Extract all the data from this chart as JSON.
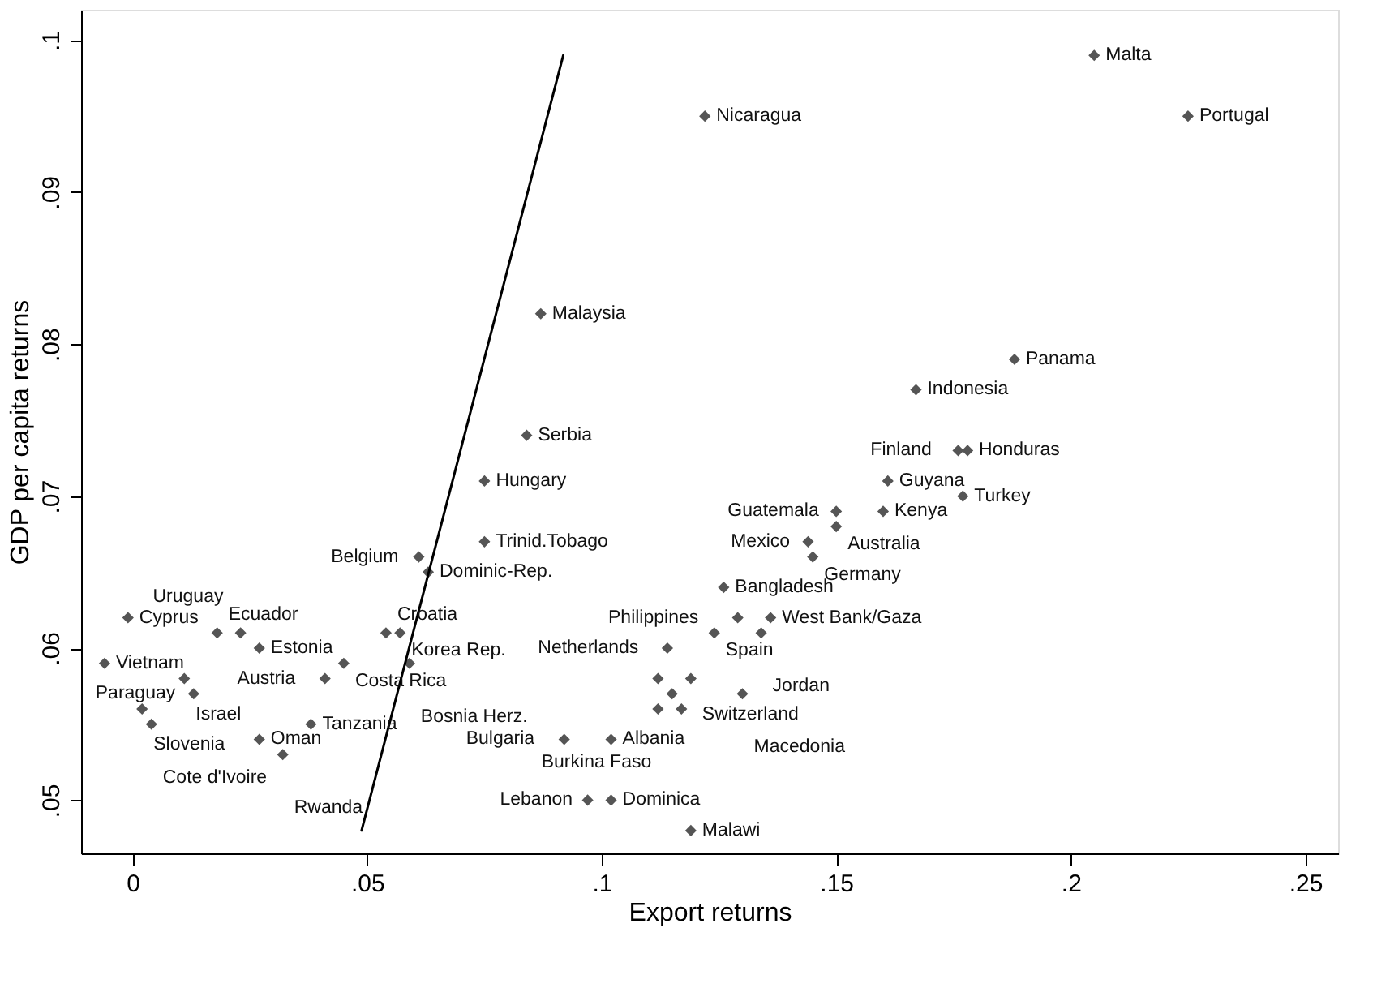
{
  "chart_data": {
    "type": "scatter",
    "xlabel": "Export returns",
    "ylabel": "GDP per capita returns",
    "xlim": [
      -0.011,
      0.257
    ],
    "ylim": [
      0.0465,
      0.102
    ],
    "xticks": [
      0,
      {
        "value": 0.05,
        "label": ".05"
      },
      {
        "value": 0.1,
        "label": ".1"
      },
      {
        "value": 0.15,
        "label": ".15"
      },
      {
        "value": 0.2,
        "label": ".2"
      },
      {
        "value": 0.25,
        "label": ".25"
      }
    ],
    "yticks": [
      {
        "value": 0.05,
        "label": ".05"
      },
      {
        "value": 0.06,
        "label": ".06"
      },
      {
        "value": 0.07,
        "label": ".07"
      },
      {
        "value": 0.08,
        "label": ".08"
      },
      {
        "value": 0.09,
        "label": ".09"
      },
      {
        "value": 0.1,
        "label": ".1"
      }
    ],
    "grid": false,
    "marker": "diamond",
    "series": [
      {
        "color": "#555555",
        "x": [
          -0.001,
          -0.006,
          0.018,
          0.023,
          0.027,
          0.054,
          0.057,
          0.045,
          0.059,
          0.041,
          0.011,
          0.013,
          0.002,
          0.004,
          0.038,
          0.027,
          0.032,
          0.092,
          0.102,
          0.097,
          0.102,
          0.119,
          0.126,
          0.129,
          0.136,
          0.124,
          0.134,
          0.114,
          0.112,
          0.119,
          0.115,
          0.13,
          0.112,
          0.117,
          0.167,
          0.176,
          0.178,
          0.161,
          0.177,
          0.15,
          0.16,
          0.15,
          0.144,
          0.145,
          0.205,
          0.225,
          0.122,
          0.087,
          0.188,
          0.084,
          0.075,
          0.075,
          0.061,
          0.063
        ],
        "values": [
          0.062,
          0.059,
          0.061,
          0.061,
          0.06,
          0.061,
          0.061,
          0.059,
          0.059,
          0.058,
          0.058,
          0.057,
          0.056,
          0.055,
          0.055,
          0.054,
          0.053,
          0.054,
          0.054,
          0.05,
          0.05,
          0.048,
          0.064,
          0.062,
          0.062,
          0.061,
          0.061,
          0.06,
          0.058,
          0.058,
          0.057,
          0.057,
          0.056,
          0.056,
          0.077,
          0.073,
          0.073,
          0.071,
          0.07,
          0.069,
          0.069,
          0.068,
          0.067,
          0.066,
          0.099,
          0.095,
          0.095,
          0.082,
          0.079,
          0.074,
          0.071,
          0.067,
          0.066,
          0.065
        ]
      },
      {
        "type": "line",
        "marker": "none",
        "color": "#000000",
        "x": [
          0.0488,
          0.0918
        ],
        "values": [
          0.048,
          0.099
        ]
      }
    ],
    "annotations": [
      {
        "text": "Cyprus",
        "x": -0.001,
        "y": 0.062
      },
      {
        "text": "Vietnam",
        "x": -0.006,
        "y": 0.059
      },
      {
        "text": "Ecuador",
        "x": 0.018,
        "y": 0.061
      },
      {
        "text": "Uruguay",
        "x": 0.023,
        "y": 0.061
      },
      {
        "text": "Estonia",
        "x": 0.027,
        "y": 0.06
      },
      {
        "text": "Croatia",
        "x": 0.054,
        "y": 0.061
      },
      {
        "text": "Korea Rep.",
        "x": 0.057,
        "y": 0.061
      },
      {
        "text": "Costa Rica",
        "x": 0.045,
        "y": 0.059
      },
      {
        "text": "Bosnia Herz.",
        "x": 0.059,
        "y": 0.059
      },
      {
        "text": "Austria",
        "x": 0.041,
        "y": 0.058
      },
      {
        "text": "Israel",
        "x": 0.011,
        "y": 0.058
      },
      {
        "text": "Paraguay",
        "x": 0.013,
        "y": 0.057
      },
      {
        "text": "Slovenia",
        "x": 0.002,
        "y": 0.056
      },
      {
        "text": "Cote d'Ivoire",
        "x": 0.004,
        "y": 0.055
      },
      {
        "text": "Tanzania",
        "x": 0.038,
        "y": 0.055
      },
      {
        "text": "Oman",
        "x": 0.027,
        "y": 0.054
      },
      {
        "text": "Rwanda",
        "x": 0.032,
        "y": 0.053
      },
      {
        "text": "Bulgaria",
        "x": 0.092,
        "y": 0.054
      },
      {
        "text": "Albania",
        "x": 0.102,
        "y": 0.054
      },
      {
        "text": "Lebanon",
        "x": 0.097,
        "y": 0.05
      },
      {
        "text": "Dominica",
        "x": 0.102,
        "y": 0.05
      },
      {
        "text": "Malawi",
        "x": 0.119,
        "y": 0.048
      },
      {
        "text": "Bangladesh",
        "x": 0.126,
        "y": 0.064
      },
      {
        "text": "Philippines",
        "x": 0.129,
        "y": 0.062
      },
      {
        "text": "West Bank/Gaza",
        "x": 0.136,
        "y": 0.062
      },
      {
        "text": "Spain",
        "x": 0.124,
        "y": 0.061
      },
      {
        "text": "Jordan",
        "x": 0.134,
        "y": 0.061
      },
      {
        "text": "Netherlands",
        "x": 0.114,
        "y": 0.06
      },
      {
        "text": "Switzerland",
        "x": 0.119,
        "y": 0.058
      },
      {
        "text": "Macedonia",
        "x": 0.13,
        "y": 0.057
      },
      {
        "text": "Burkina Faso",
        "x": 0.117,
        "y": 0.056
      },
      {
        "text": "Indonesia",
        "x": 0.167,
        "y": 0.077
      },
      {
        "text": "Finland",
        "x": 0.176,
        "y": 0.073
      },
      {
        "text": "Honduras",
        "x": 0.178,
        "y": 0.073
      },
      {
        "text": "Guyana",
        "x": 0.161,
        "y": 0.071
      },
      {
        "text": "Turkey",
        "x": 0.177,
        "y": 0.07
      },
      {
        "text": "Guatemala",
        "x": 0.15,
        "y": 0.069
      },
      {
        "text": "Kenya",
        "x": 0.16,
        "y": 0.069
      },
      {
        "text": "Australia",
        "x": 0.15,
        "y": 0.068
      },
      {
        "text": "Mexico",
        "x": 0.144,
        "y": 0.067
      },
      {
        "text": "Germany",
        "x": 0.145,
        "y": 0.066
      },
      {
        "text": "Malta",
        "x": 0.205,
        "y": 0.099
      },
      {
        "text": "Portugal",
        "x": 0.225,
        "y": 0.095
      },
      {
        "text": "Nicaragua",
        "x": 0.122,
        "y": 0.095
      },
      {
        "text": "Malaysia",
        "x": 0.087,
        "y": 0.082
      },
      {
        "text": "Panama",
        "x": 0.188,
        "y": 0.079
      },
      {
        "text": "Serbia",
        "x": 0.084,
        "y": 0.074
      },
      {
        "text": "Hungary",
        "x": 0.075,
        "y": 0.071
      },
      {
        "text": "Trinid.Tobago",
        "x": 0.075,
        "y": 0.067
      },
      {
        "text": "Belgium",
        "x": 0.061,
        "y": 0.066
      },
      {
        "text": "Dominic-Rep.",
        "x": 0.063,
        "y": 0.065
      }
    ]
  }
}
